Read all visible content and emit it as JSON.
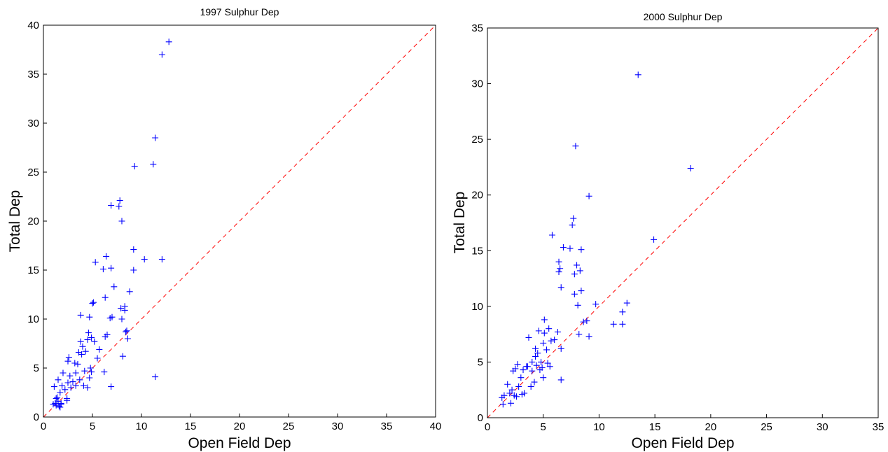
{
  "chart_data": [
    {
      "type": "scatter",
      "title": "1997 Sulphur Dep",
      "xlabel": "Open Field Dep",
      "ylabel": "Total Dep",
      "xlim": [
        0,
        40
      ],
      "ylim": [
        0,
        40
      ],
      "xticks": [
        0,
        5,
        10,
        15,
        20,
        25,
        30,
        35,
        40
      ],
      "yticks": [
        0,
        5,
        10,
        15,
        20,
        25,
        30,
        35,
        40
      ],
      "reference_line": "y = x (dashed)",
      "colors": {
        "markers": "#0000ff",
        "reference_line": "#ff0000"
      },
      "series": [
        {
          "marker": "+",
          "points": [
            [
              1.0,
              1.3
            ],
            [
              1.1,
              3.1
            ],
            [
              1.2,
              1.4
            ],
            [
              1.3,
              1.2
            ],
            [
              1.4,
              2.0
            ],
            [
              1.5,
              1.6
            ],
            [
              1.5,
              3.8
            ],
            [
              1.6,
              1.1
            ],
            [
              1.7,
              2.5
            ],
            [
              1.7,
              1.0
            ],
            [
              1.8,
              1.4
            ],
            [
              1.9,
              3.2
            ],
            [
              2.0,
              4.5
            ],
            [
              2.2,
              2.8
            ],
            [
              2.4,
              1.7
            ],
            [
              2.5,
              3.5
            ],
            [
              2.5,
              5.7
            ],
            [
              2.6,
              6.1
            ],
            [
              2.7,
              4.2
            ],
            [
              2.8,
              3.0
            ],
            [
              3.0,
              3.6
            ],
            [
              3.2,
              5.5
            ],
            [
              3.3,
              3.2
            ],
            [
              3.3,
              4.5
            ],
            [
              3.5,
              5.4
            ],
            [
              3.6,
              6.6
            ],
            [
              3.7,
              3.8
            ],
            [
              3.8,
              7.7
            ],
            [
              3.8,
              10.4
            ],
            [
              3.9,
              6.4
            ],
            [
              4.0,
              7.2
            ],
            [
              4.1,
              3.2
            ],
            [
              4.2,
              4.7
            ],
            [
              4.3,
              6.7
            ],
            [
              4.5,
              3.0
            ],
            [
              4.5,
              7.9
            ],
            [
              4.6,
              8.6
            ],
            [
              4.7,
              4.0
            ],
            [
              4.7,
              10.2
            ],
            [
              4.8,
              5.0
            ],
            [
              4.9,
              8.1
            ],
            [
              4.9,
              4.6
            ],
            [
              5.0,
              11.6
            ],
            [
              5.1,
              11.7
            ],
            [
              5.2,
              7.7
            ],
            [
              5.3,
              15.8
            ],
            [
              5.5,
              6.0
            ],
            [
              5.7,
              6.9
            ],
            [
              6.1,
              15.1
            ],
            [
              6.2,
              4.6
            ],
            [
              6.3,
              8.2
            ],
            [
              6.3,
              12.2
            ],
            [
              6.4,
              16.4
            ],
            [
              6.5,
              8.4
            ],
            [
              6.8,
              10.1
            ],
            [
              6.9,
              15.2
            ],
            [
              6.9,
              21.6
            ],
            [
              7.0,
              10.2
            ],
            [
              7.2,
              13.3
            ],
            [
              7.7,
              21.5
            ],
            [
              7.8,
              22.1
            ],
            [
              7.9,
              11.1
            ],
            [
              8.0,
              20.0
            ],
            [
              8.0,
              10.0
            ],
            [
              8.1,
              6.2
            ],
            [
              8.3,
              10.9
            ],
            [
              8.3,
              11.3
            ],
            [
              8.4,
              8.7
            ],
            [
              8.5,
              8.8
            ],
            [
              8.6,
              8.0
            ],
            [
              8.8,
              12.8
            ],
            [
              9.2,
              15.0
            ],
            [
              9.2,
              17.1
            ],
            [
              9.3,
              25.6
            ],
            [
              10.3,
              16.1
            ],
            [
              11.2,
              25.8
            ],
            [
              11.4,
              28.5
            ],
            [
              11.4,
              4.1
            ],
            [
              12.1,
              37.0
            ],
            [
              12.1,
              16.1
            ],
            [
              12.8,
              38.3
            ],
            [
              6.9,
              3.1
            ],
            [
              2.4,
              1.9
            ],
            [
              1.3,
              1.9
            ],
            [
              1.8,
              1.3
            ]
          ]
        }
      ]
    },
    {
      "type": "scatter",
      "title": "2000 Sulphur Dep",
      "xlabel": "Open Field Dep",
      "ylabel": "Total Dep",
      "xlim": [
        0,
        35
      ],
      "ylim": [
        0,
        35
      ],
      "xticks": [
        0,
        5,
        10,
        15,
        20,
        25,
        30,
        35
      ],
      "yticks": [
        0,
        5,
        10,
        15,
        20,
        25,
        30,
        35
      ],
      "reference_line": "y = x (dashed)",
      "colors": {
        "markers": "#0000ff",
        "reference_line": "#ff0000"
      },
      "series": [
        {
          "marker": "+",
          "points": [
            [
              1.3,
              1.8
            ],
            [
              1.4,
              1.2
            ],
            [
              1.5,
              2.0
            ],
            [
              1.8,
              3.0
            ],
            [
              2.0,
              2.2
            ],
            [
              2.1,
              1.3
            ],
            [
              2.2,
              2.5
            ],
            [
              2.3,
              4.2
            ],
            [
              2.4,
              2.0
            ],
            [
              2.5,
              4.4
            ],
            [
              2.7,
              4.8
            ],
            [
              2.8,
              2.8
            ],
            [
              3.0,
              3.6
            ],
            [
              3.1,
              2.1
            ],
            [
              3.2,
              4.3
            ],
            [
              3.3,
              2.2
            ],
            [
              3.6,
              4.6
            ],
            [
              3.7,
              7.2
            ],
            [
              3.9,
              2.8
            ],
            [
              4.0,
              4.2
            ],
            [
              4.0,
              5.0
            ],
            [
              4.2,
              3.2
            ],
            [
              4.3,
              6.2
            ],
            [
              4.3,
              5.5
            ],
            [
              4.4,
              4.7
            ],
            [
              4.5,
              5.8
            ],
            [
              4.6,
              7.8
            ],
            [
              4.7,
              4.3
            ],
            [
              4.8,
              5.0
            ],
            [
              4.9,
              4.5
            ],
            [
              5.0,
              6.7
            ],
            [
              5.1,
              7.6
            ],
            [
              5.1,
              8.8
            ],
            [
              5.3,
              6.1
            ],
            [
              5.4,
              4.9
            ],
            [
              5.5,
              8.0
            ],
            [
              5.6,
              4.6
            ],
            [
              5.7,
              6.9
            ],
            [
              5.8,
              16.4
            ],
            [
              6.0,
              7.0
            ],
            [
              6.3,
              7.7
            ],
            [
              6.4,
              13.1
            ],
            [
              6.4,
              14.0
            ],
            [
              6.5,
              13.4
            ],
            [
              6.6,
              11.7
            ],
            [
              6.6,
              6.2
            ],
            [
              6.6,
              3.4
            ],
            [
              6.8,
              15.3
            ],
            [
              7.4,
              15.2
            ],
            [
              7.6,
              17.3
            ],
            [
              7.7,
              17.9
            ],
            [
              7.8,
              11.1
            ],
            [
              7.8,
              12.9
            ],
            [
              7.9,
              24.4
            ],
            [
              8.0,
              13.7
            ],
            [
              8.1,
              10.1
            ],
            [
              8.2,
              7.5
            ],
            [
              8.3,
              13.2
            ],
            [
              8.4,
              11.4
            ],
            [
              8.4,
              15.1
            ],
            [
              8.6,
              8.6
            ],
            [
              8.9,
              8.7
            ],
            [
              9.1,
              19.9
            ],
            [
              9.1,
              7.3
            ],
            [
              9.7,
              10.2
            ],
            [
              11.3,
              8.4
            ],
            [
              12.1,
              8.4
            ],
            [
              12.1,
              9.5
            ],
            [
              12.5,
              10.3
            ],
            [
              13.5,
              30.8
            ],
            [
              14.9,
              16.0
            ],
            [
              18.2,
              22.4
            ],
            [
              5.0,
              3.6
            ],
            [
              3.5,
              4.6
            ],
            [
              2.6,
              1.9
            ]
          ]
        }
      ]
    }
  ]
}
